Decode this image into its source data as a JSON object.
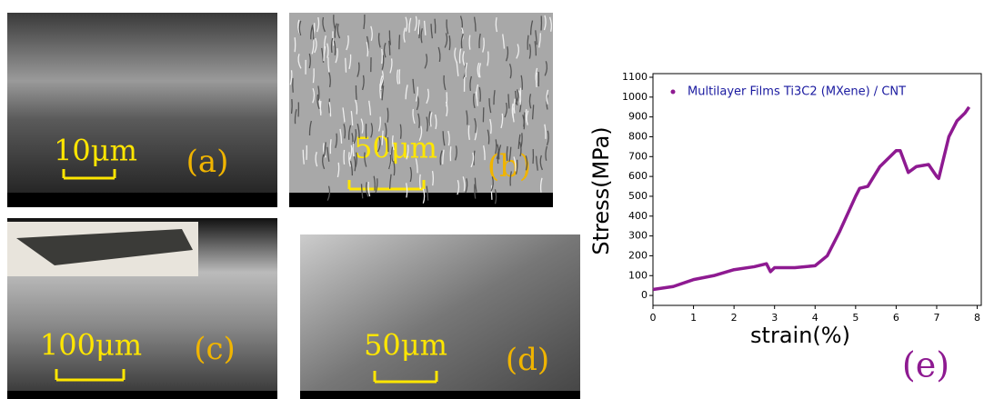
{
  "panels": [
    {
      "scale_label": "10μm",
      "label": "(a)"
    },
    {
      "scale_label": "50μm",
      "label": "(b)"
    },
    {
      "scale_label": "100μm",
      "label": "(c)"
    },
    {
      "scale_label": "50μm",
      "label": "(d)"
    }
  ],
  "chart_data": {
    "type": "line",
    "label": "(e)",
    "x_label": "strain(%)",
    "y_label": "Stress(MPa)",
    "xlim": [
      0,
      8.1
    ],
    "xticks": [
      0,
      1,
      2,
      3,
      4,
      5,
      6,
      7,
      8
    ],
    "ylim": [
      -50,
      1100
    ],
    "yticks": [
      0,
      100,
      200,
      300,
      400,
      500,
      600,
      700,
      800,
      900,
      1000,
      1100
    ],
    "x": [
      0,
      0.5,
      1,
      1.5,
      2,
      2.5,
      2.8,
      2.9,
      3,
      3.5,
      4,
      4.3,
      4.6,
      5,
      5.1,
      5.3,
      5.6,
      6,
      6.1,
      6.3,
      6.5,
      6.8,
      7,
      7.05,
      7.3,
      7.5,
      7.7,
      7.8
    ],
    "series": [
      {
        "name": "Multilayer Films Ti3C2 (MXene) / CNT",
        "color": "#8e1a91",
        "values": [
          30,
          45,
          80,
          100,
          130,
          145,
          160,
          120,
          140,
          140,
          150,
          200,
          320,
          500,
          540,
          550,
          650,
          730,
          730,
          620,
          650,
          660,
          600,
          590,
          800,
          880,
          920,
          950
        ]
      }
    ],
    "legend": "top-left"
  }
}
